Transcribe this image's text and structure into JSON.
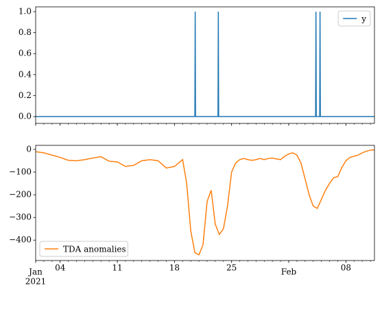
{
  "chart_data": [
    {
      "type": "line",
      "x": [
        "2021-01-01",
        "2021-01-20T12:00",
        "2021-01-20T13:00",
        "2021-01-20T14:00",
        "2021-01-23T08:00",
        "2021-01-23T09:00",
        "2021-01-23T10:00",
        "2021-02-04T07:00",
        "2021-02-04T08:00",
        "2021-02-04T09:00",
        "2021-02-04T19:00",
        "2021-02-04T20:00",
        "2021-02-04T21:00",
        "2021-02-11T12:00"
      ],
      "series": [
        {
          "name": "y",
          "color": "#1f77b4",
          "values": [
            0,
            0,
            1,
            0,
            0,
            1,
            0,
            0,
            1,
            0,
            0,
            1,
            0,
            0
          ]
        }
      ],
      "xlim": [
        "2021-01-01",
        "2021-02-11T12:00"
      ],
      "ylim": [
        -0.065,
        1.046
      ],
      "yticks": [
        {
          "value": 0,
          "label": "0.0"
        },
        0.2,
        0.4,
        0.6,
        0.8,
        {
          "value": 1,
          "label": "1.0"
        }
      ],
      "legend": "upper right"
    },
    {
      "type": "line",
      "x": [
        "2021-01-01",
        "2021-01-02",
        "2021-01-03",
        "2021-01-04",
        "2021-01-05",
        "2021-01-06",
        "2021-01-07",
        "2021-01-08",
        "2021-01-09",
        "2021-01-10",
        "2021-01-11",
        "2021-01-12",
        "2021-01-13",
        "2021-01-14",
        "2021-01-15",
        "2021-01-16",
        "2021-01-17",
        "2021-01-18",
        "2021-01-18T12:00",
        "2021-01-19",
        "2021-01-19T12:00",
        "2021-01-20",
        "2021-01-20T12:00",
        "2021-01-21",
        "2021-01-21T12:00",
        "2021-01-22",
        "2021-01-22T12:00",
        "2021-01-23",
        "2021-01-23T12:00",
        "2021-01-24",
        "2021-01-24T12:00",
        "2021-01-25",
        "2021-01-25T12:00",
        "2021-01-26",
        "2021-01-26T12:00",
        "2021-01-27",
        "2021-01-27T12:00",
        "2021-01-28",
        "2021-01-28T12:00",
        "2021-01-29",
        "2021-01-29T12:00",
        "2021-01-30",
        "2021-01-30T12:00",
        "2021-01-31",
        "2021-01-31T12:00",
        "2021-02-01",
        "2021-02-01T12:00",
        "2021-02-02",
        "2021-02-02T12:00",
        "2021-02-03",
        "2021-02-03T12:00",
        "2021-02-04",
        "2021-02-04T12:00",
        "2021-02-05",
        "2021-02-05T12:00",
        "2021-02-06",
        "2021-02-06T12:00",
        "2021-02-07",
        "2021-02-07T12:00",
        "2021-02-08",
        "2021-02-08T12:00",
        "2021-02-09",
        "2021-02-09T12:00",
        "2021-02-10",
        "2021-02-10T12:00",
        "2021-02-11",
        "2021-02-11T12:00"
      ],
      "series": [
        {
          "name": "TDA anomalies",
          "color": "#ff7f0e",
          "values": [
            -10,
            -15,
            -25,
            -35,
            -48,
            -50,
            -45,
            -38,
            -32,
            -52,
            -55,
            -75,
            -70,
            -50,
            -45,
            -50,
            -82,
            -75,
            -60,
            -45,
            -150,
            -360,
            -455,
            -465,
            -420,
            -230,
            -180,
            -330,
            -375,
            -350,
            -250,
            -100,
            -60,
            -45,
            -40,
            -45,
            -48,
            -45,
            -40,
            -45,
            -40,
            -38,
            -42,
            -45,
            -30,
            -20,
            -15,
            -25,
            -60,
            -130,
            -200,
            -250,
            -260,
            -220,
            -180,
            -150,
            -125,
            -120,
            -80,
            -50,
            -35,
            -30,
            -25,
            -15,
            -8,
            -3,
            -2
          ]
        }
      ],
      "xlim": [
        "2021-01-01",
        "2021-02-11T12:00"
      ],
      "ylim": [
        -490,
        18
      ],
      "yticks": [
        0,
        {
          "value": -100,
          "label": "−100"
        },
        {
          "value": -200,
          "label": "−200"
        },
        {
          "value": -300,
          "label": "−300"
        },
        {
          "value": -400,
          "label": "−400"
        }
      ],
      "xticks": [
        {
          "value": "2021-01-04",
          "label": "04"
        },
        {
          "value": "2021-01-11",
          "label": "11"
        },
        {
          "value": "2021-01-18",
          "label": "18"
        },
        {
          "value": "2021-01-25",
          "label": "25"
        },
        {
          "value": "2021-02-08",
          "label": "08"
        }
      ],
      "month_ticks": [
        {
          "value": "2021-01-01",
          "label": "Jan"
        },
        {
          "value": "2021-02-01",
          "label": "Feb"
        }
      ],
      "year_label": "2021",
      "legend": "lower left"
    }
  ]
}
